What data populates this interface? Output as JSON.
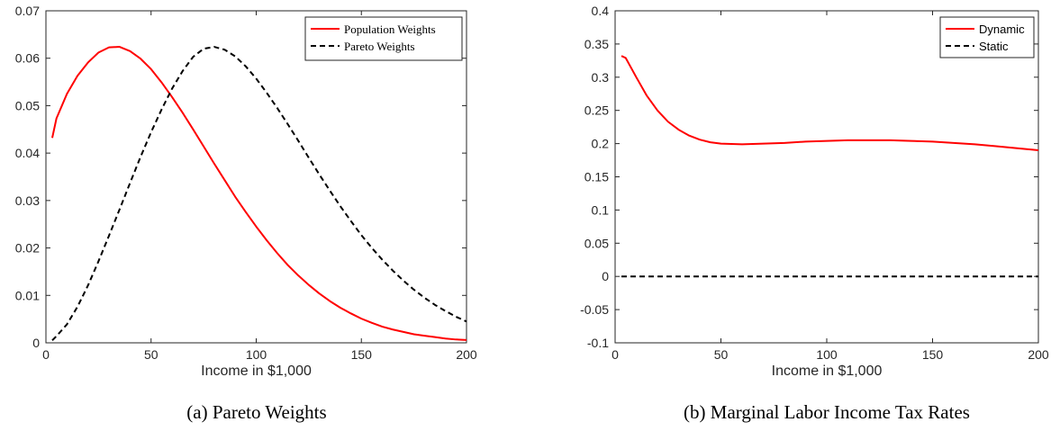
{
  "chart_data": [
    {
      "type": "line",
      "title": "",
      "caption": "(a) Pareto Weights",
      "xlabel": "Income in $1,000",
      "ylabel": "",
      "xlim": [
        0,
        200
      ],
      "ylim": [
        0,
        0.07
      ],
      "xticks": [
        0,
        50,
        100,
        150,
        200
      ],
      "yticks": [
        0,
        0.01,
        0.02,
        0.03,
        0.04,
        0.05,
        0.06,
        0.07
      ],
      "xtick_labels": [
        "0",
        "50",
        "100",
        "150",
        "200"
      ],
      "ytick_labels": [
        "0",
        "0.01",
        "0.02",
        "0.03",
        "0.04",
        "0.05",
        "0.06",
        "0.07"
      ],
      "grid": false,
      "legend_position": "top-right",
      "series": [
        {
          "name": "Population Weights",
          "color": "#ff0000",
          "dash": "solid",
          "x": [
            3,
            5,
            10,
            15,
            20,
            25,
            30,
            35,
            40,
            45,
            50,
            55,
            60,
            65,
            70,
            75,
            80,
            85,
            90,
            95,
            100,
            105,
            110,
            115,
            120,
            125,
            130,
            135,
            140,
            145,
            150,
            155,
            160,
            165,
            170,
            175,
            180,
            185,
            190,
            195,
            200
          ],
          "y": [
            0.0432,
            0.0473,
            0.0525,
            0.0563,
            0.0591,
            0.0612,
            0.0623,
            0.0624,
            0.0615,
            0.0599,
            0.0577,
            0.0549,
            0.0518,
            0.0485,
            0.045,
            0.0414,
            0.0378,
            0.0343,
            0.0308,
            0.0276,
            0.0245,
            0.0216,
            0.0189,
            0.0164,
            0.0142,
            0.0122,
            0.0104,
            0.0088,
            0.0074,
            0.0062,
            0.0051,
            0.0042,
            0.0034,
            0.0028,
            0.0023,
            0.0018,
            0.0015,
            0.0012,
            0.0009,
            0.0007,
            0.0006
          ]
        },
        {
          "name": "Pareto Weights",
          "color": "#000000",
          "dash": "dashed",
          "x": [
            3,
            5,
            10,
            15,
            20,
            25,
            30,
            35,
            40,
            45,
            50,
            55,
            60,
            65,
            70,
            75,
            80,
            85,
            90,
            95,
            100,
            105,
            110,
            115,
            120,
            125,
            130,
            135,
            140,
            145,
            150,
            155,
            160,
            165,
            170,
            175,
            180,
            185,
            190,
            195,
            200
          ],
          "y": [
            0.0005,
            0.0014,
            0.0039,
            0.0076,
            0.0121,
            0.0172,
            0.0226,
            0.0281,
            0.0337,
            0.0392,
            0.0444,
            0.0492,
            0.0536,
            0.0573,
            0.0603,
            0.062,
            0.0624,
            0.0618,
            0.0604,
            0.0583,
            0.0557,
            0.0527,
            0.0495,
            0.0461,
            0.0426,
            0.039,
            0.0355,
            0.0321,
            0.0288,
            0.0257,
            0.0227,
            0.02,
            0.0175,
            0.0152,
            0.0131,
            0.0112,
            0.0095,
            0.008,
            0.0067,
            0.0055,
            0.0045
          ]
        }
      ]
    },
    {
      "type": "line",
      "title": "",
      "caption": "(b) Marginal Labor Income Tax Rates",
      "xlabel": "Income in $1,000",
      "ylabel": "",
      "xlim": [
        0,
        200
      ],
      "ylim": [
        -0.1,
        0.4
      ],
      "xticks": [
        0,
        50,
        100,
        150,
        200
      ],
      "yticks": [
        -0.1,
        -0.05,
        0,
        0.05,
        0.1,
        0.15,
        0.2,
        0.25,
        0.3,
        0.35,
        0.4
      ],
      "xtick_labels": [
        "0",
        "50",
        "100",
        "150",
        "200"
      ],
      "ytick_labels": [
        "-0.1",
        "-0.05",
        "0",
        "0.05",
        "0.1",
        "0.15",
        "0.2",
        "0.25",
        "0.3",
        "0.35",
        "0.4"
      ],
      "grid": false,
      "legend_position": "top-right",
      "series": [
        {
          "name": "Dynamic",
          "color": "#ff0000",
          "dash": "solid",
          "x": [
            3,
            5,
            10,
            15,
            20,
            25,
            30,
            35,
            40,
            45,
            50,
            60,
            70,
            80,
            90,
            100,
            110,
            120,
            130,
            140,
            150,
            160,
            170,
            180,
            190,
            200
          ],
          "y": [
            0.332,
            0.329,
            0.3,
            0.272,
            0.25,
            0.233,
            0.221,
            0.212,
            0.206,
            0.202,
            0.2,
            0.199,
            0.2,
            0.201,
            0.203,
            0.204,
            0.205,
            0.205,
            0.205,
            0.204,
            0.203,
            0.201,
            0.199,
            0.196,
            0.193,
            0.19
          ]
        },
        {
          "name": "Static",
          "color": "#000000",
          "dash": "dashed",
          "x": [
            3,
            200
          ],
          "y": [
            0,
            0
          ]
        }
      ]
    }
  ]
}
